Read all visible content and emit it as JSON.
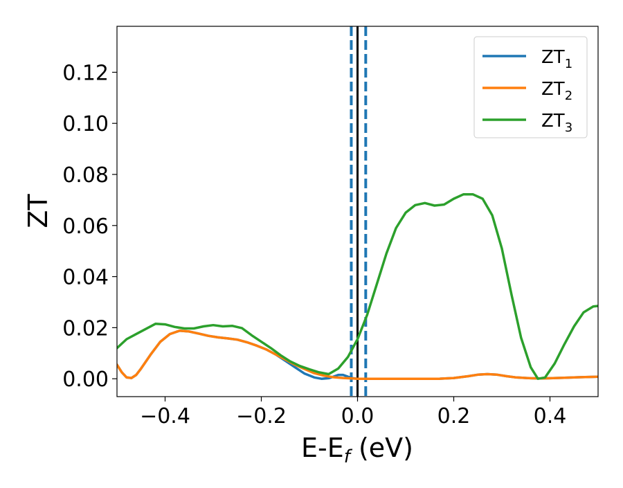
{
  "chart_data": {
    "type": "line",
    "xlabel": {
      "main": "E-E",
      "sub": "f",
      "suffix": " (eV)"
    },
    "ylabel": "ZT",
    "xlim": [
      -0.5,
      0.5
    ],
    "ylim": [
      -0.007,
      0.138
    ],
    "xticks": [
      -0.4,
      -0.2,
      0.0,
      0.2,
      0.4
    ],
    "xtick_labels": [
      "−0.4",
      "−0.2",
      "0.0",
      "0.2",
      "0.4"
    ],
    "yticks": [
      0.0,
      0.02,
      0.04,
      0.06,
      0.08,
      0.1,
      0.12
    ],
    "ytick_labels": [
      "0.00",
      "0.02",
      "0.04",
      "0.06",
      "0.08",
      "0.10",
      "0.12"
    ],
    "grid": false,
    "legend_position": "top-right",
    "vlines": [
      {
        "x": -0.013,
        "style": "dashed",
        "color": "#1f77b4"
      },
      {
        "x": 0.0,
        "style": "solid",
        "color": "#000000"
      },
      {
        "x": 0.017,
        "style": "dashed",
        "color": "#1f77b4"
      }
    ],
    "series": [
      {
        "name": "ZT",
        "sub": "1",
        "color": "#1f77b4",
        "points": [
          [
            -0.5,
            0.0055
          ],
          [
            -0.49,
            0.0025
          ],
          [
            -0.48,
            0.0005
          ],
          [
            -0.47,
            0.0003
          ],
          [
            -0.46,
            0.0015
          ],
          [
            -0.45,
            0.004
          ],
          [
            -0.43,
            0.0095
          ],
          [
            -0.41,
            0.0145
          ],
          [
            -0.39,
            0.0175
          ],
          [
            -0.37,
            0.0188
          ],
          [
            -0.35,
            0.0185
          ],
          [
            -0.33,
            0.0177
          ],
          [
            -0.31,
            0.0168
          ],
          [
            -0.29,
            0.0162
          ],
          [
            -0.27,
            0.0158
          ],
          [
            -0.25,
            0.0153
          ],
          [
            -0.23,
            0.0143
          ],
          [
            -0.21,
            0.013
          ],
          [
            -0.19,
            0.0115
          ],
          [
            -0.17,
            0.0095
          ],
          [
            -0.15,
            0.007
          ],
          [
            -0.13,
            0.0045
          ],
          [
            -0.11,
            0.002
          ],
          [
            -0.09,
            0.0005
          ],
          [
            -0.075,
            0.0
          ],
          [
            -0.06,
            0.0002
          ],
          [
            -0.05,
            0.0008
          ],
          [
            -0.04,
            0.0015
          ],
          [
            -0.03,
            0.0015
          ],
          [
            -0.02,
            0.0008
          ],
          [
            -0.01,
            0.0002
          ],
          [
            0.0,
            0.0
          ],
          [
            0.1,
            0.0
          ],
          [
            0.17,
            0.0
          ],
          [
            0.2,
            0.0003
          ],
          [
            0.23,
            0.001
          ],
          [
            0.25,
            0.0016
          ],
          [
            0.27,
            0.0018
          ],
          [
            0.29,
            0.0016
          ],
          [
            0.31,
            0.001
          ],
          [
            0.33,
            0.0005
          ],
          [
            0.36,
            0.0002
          ],
          [
            0.38,
            0.0001
          ],
          [
            0.4,
            0.0002
          ],
          [
            0.43,
            0.0004
          ],
          [
            0.46,
            0.0006
          ],
          [
            0.5,
            0.0008
          ]
        ]
      },
      {
        "name": "ZT",
        "sub": "2",
        "color": "#ff7f0e",
        "points": [
          [
            -0.5,
            0.0055
          ],
          [
            -0.49,
            0.0025
          ],
          [
            -0.48,
            0.0005
          ],
          [
            -0.47,
            0.0003
          ],
          [
            -0.46,
            0.0015
          ],
          [
            -0.45,
            0.004
          ],
          [
            -0.43,
            0.0095
          ],
          [
            -0.41,
            0.0145
          ],
          [
            -0.39,
            0.0175
          ],
          [
            -0.37,
            0.0188
          ],
          [
            -0.35,
            0.0185
          ],
          [
            -0.33,
            0.0177
          ],
          [
            -0.31,
            0.0168
          ],
          [
            -0.29,
            0.0162
          ],
          [
            -0.27,
            0.0158
          ],
          [
            -0.25,
            0.0153
          ],
          [
            -0.23,
            0.0143
          ],
          [
            -0.21,
            0.013
          ],
          [
            -0.19,
            0.0115
          ],
          [
            -0.17,
            0.0095
          ],
          [
            -0.15,
            0.0075
          ],
          [
            -0.13,
            0.0055
          ],
          [
            -0.11,
            0.0038
          ],
          [
            -0.09,
            0.0022
          ],
          [
            -0.07,
            0.0012
          ],
          [
            -0.05,
            0.0006
          ],
          [
            -0.03,
            0.0003
          ],
          [
            -0.01,
            0.0001
          ],
          [
            0.0,
            0.0
          ],
          [
            0.1,
            0.0
          ],
          [
            0.17,
            0.0
          ],
          [
            0.2,
            0.0003
          ],
          [
            0.23,
            0.001
          ],
          [
            0.25,
            0.0016
          ],
          [
            0.27,
            0.0018
          ],
          [
            0.29,
            0.0016
          ],
          [
            0.31,
            0.001
          ],
          [
            0.33,
            0.0005
          ],
          [
            0.36,
            0.0002
          ],
          [
            0.38,
            0.0001
          ],
          [
            0.4,
            0.0002
          ],
          [
            0.43,
            0.0004
          ],
          [
            0.46,
            0.0006
          ],
          [
            0.5,
            0.0008
          ]
        ]
      },
      {
        "name": "ZT",
        "sub": "3",
        "color": "#2ca02c",
        "points": [
          [
            -0.5,
            0.012
          ],
          [
            -0.48,
            0.0155
          ],
          [
            -0.46,
            0.0175
          ],
          [
            -0.44,
            0.0195
          ],
          [
            -0.42,
            0.0215
          ],
          [
            -0.4,
            0.0213
          ],
          [
            -0.38,
            0.0203
          ],
          [
            -0.36,
            0.0197
          ],
          [
            -0.34,
            0.0197
          ],
          [
            -0.32,
            0.0205
          ],
          [
            -0.3,
            0.021
          ],
          [
            -0.28,
            0.0205
          ],
          [
            -0.26,
            0.0207
          ],
          [
            -0.24,
            0.0198
          ],
          [
            -0.22,
            0.017
          ],
          [
            -0.2,
            0.0145
          ],
          [
            -0.18,
            0.012
          ],
          [
            -0.16,
            0.0092
          ],
          [
            -0.14,
            0.0068
          ],
          [
            -0.12,
            0.005
          ],
          [
            -0.1,
            0.0037
          ],
          [
            -0.08,
            0.0025
          ],
          [
            -0.06,
            0.0018
          ],
          [
            -0.04,
            0.004
          ],
          [
            -0.02,
            0.0085
          ],
          [
            0.0,
            0.0155
          ],
          [
            0.02,
            0.025
          ],
          [
            0.04,
            0.037
          ],
          [
            0.06,
            0.049
          ],
          [
            0.08,
            0.059
          ],
          [
            0.1,
            0.065
          ],
          [
            0.12,
            0.068
          ],
          [
            0.14,
            0.0688
          ],
          [
            0.16,
            0.0678
          ],
          [
            0.18,
            0.0682
          ],
          [
            0.2,
            0.0705
          ],
          [
            0.22,
            0.0722
          ],
          [
            0.24,
            0.0722
          ],
          [
            0.26,
            0.0705
          ],
          [
            0.28,
            0.064
          ],
          [
            0.3,
            0.051
          ],
          [
            0.32,
            0.033
          ],
          [
            0.34,
            0.016
          ],
          [
            0.36,
            0.0045
          ],
          [
            0.375,
            0.0
          ],
          [
            0.39,
            0.0005
          ],
          [
            0.41,
            0.006
          ],
          [
            0.43,
            0.0135
          ],
          [
            0.45,
            0.0205
          ],
          [
            0.47,
            0.026
          ],
          [
            0.49,
            0.0283
          ],
          [
            0.5,
            0.0285
          ]
        ]
      }
    ]
  }
}
